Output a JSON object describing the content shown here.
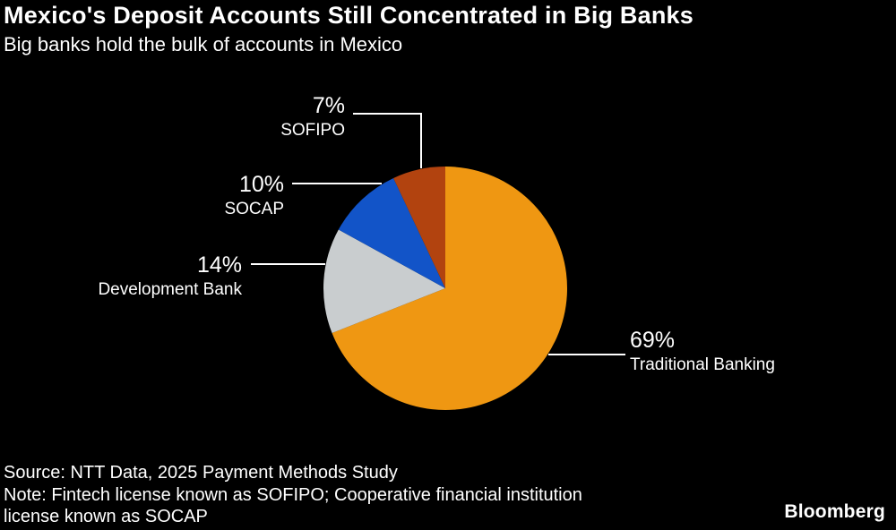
{
  "chart_data": {
    "type": "pie",
    "title": "Mexico's Deposit Accounts Still Concentrated in Big Banks",
    "subtitle": "Big banks hold the bulk of accounts in Mexico",
    "start_angle_deg": 0,
    "direction": "clockwise",
    "legend": "none",
    "background_color": "#000000",
    "slices": [
      {
        "label": "Traditional Banking",
        "value": 69,
        "pct_label": "69%",
        "color": "#EF9712"
      },
      {
        "label": "Development Bank",
        "value": 14,
        "pct_label": "14%",
        "color": "#C9CDCF"
      },
      {
        "label": "SOCAP",
        "value": 10,
        "pct_label": "10%",
        "color": "#1254C8"
      },
      {
        "label": "SOFIPO",
        "value": 7,
        "pct_label": "7%",
        "color": "#B2430F"
      }
    ]
  },
  "footer": {
    "source": "Source: NTT Data, 2025 Payment Methods Study",
    "note_lines": [
      "Note: Fintech license known as SOFIPO; Cooperative financial institution",
      "license known as SOCAP"
    ],
    "brand": "Bloomberg"
  }
}
